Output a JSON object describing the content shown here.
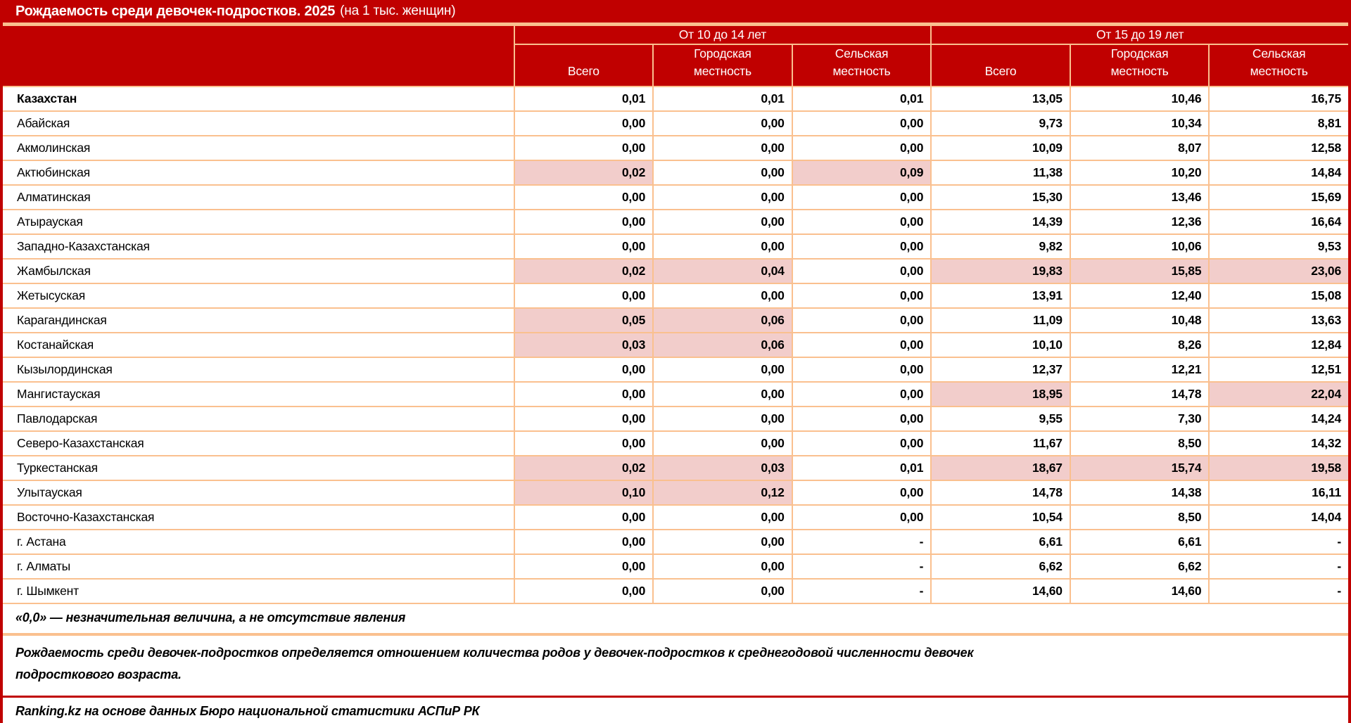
{
  "colors": {
    "header_red": "#C00000",
    "border_peach": "#FAC08F",
    "highlight_pink": "#F2CDCB",
    "header_text": "#FFFFFF",
    "body_text": "#000000"
  },
  "chart_data": {
    "type": "table",
    "title": "Рождаемость среди девочек-подростков. 2025",
    "title_suffix": "(на 1 тыс. женщин)",
    "column_groups": [
      "От 10 до 14 лет",
      "От 15 до 19 лет"
    ],
    "sub_columns": [
      "Всего",
      "Городская местность",
      "Сельская местность"
    ],
    "rows": [
      {
        "region": "Казахстан",
        "bold": true,
        "values": [
          "0,01",
          "0,01",
          "0,01",
          "13,05",
          "10,46",
          "16,75"
        ],
        "highlighted": []
      },
      {
        "region": "Абайская",
        "values": [
          "0,00",
          "0,00",
          "0,00",
          "9,73",
          "10,34",
          "8,81"
        ],
        "highlighted": []
      },
      {
        "region": "Акмолинская",
        "values": [
          "0,00",
          "0,00",
          "0,00",
          "10,09",
          "8,07",
          "12,58"
        ],
        "highlighted": []
      },
      {
        "region": "Актюбинская",
        "values": [
          "0,02",
          "0,00",
          "0,09",
          "11,38",
          "10,20",
          "14,84"
        ],
        "highlighted": [
          0,
          2
        ]
      },
      {
        "region": "Алматинская",
        "values": [
          "0,00",
          "0,00",
          "0,00",
          "15,30",
          "13,46",
          "15,69"
        ],
        "highlighted": []
      },
      {
        "region": "Атырауская",
        "values": [
          "0,00",
          "0,00",
          "0,00",
          "14,39",
          "12,36",
          "16,64"
        ],
        "highlighted": []
      },
      {
        "region": "Западно-Казахстанская",
        "values": [
          "0,00",
          "0,00",
          "0,00",
          "9,82",
          "10,06",
          "9,53"
        ],
        "highlighted": []
      },
      {
        "region": "Жамбылская",
        "values": [
          "0,02",
          "0,04",
          "0,00",
          "19,83",
          "15,85",
          "23,06"
        ],
        "highlighted": [
          0,
          1,
          3,
          4,
          5
        ]
      },
      {
        "region": "Жетысуская",
        "values": [
          "0,00",
          "0,00",
          "0,00",
          "13,91",
          "12,40",
          "15,08"
        ],
        "highlighted": []
      },
      {
        "region": "Карагандинская",
        "values": [
          "0,05",
          "0,06",
          "0,00",
          "11,09",
          "10,48",
          "13,63"
        ],
        "highlighted": [
          0,
          1
        ]
      },
      {
        "region": "Костанайская",
        "values": [
          "0,03",
          "0,06",
          "0,00",
          "10,10",
          "8,26",
          "12,84"
        ],
        "highlighted": [
          0,
          1
        ]
      },
      {
        "region": "Кызылординская",
        "values": [
          "0,00",
          "0,00",
          "0,00",
          "12,37",
          "12,21",
          "12,51"
        ],
        "highlighted": []
      },
      {
        "region": "Мангистауская",
        "values": [
          "0,00",
          "0,00",
          "0,00",
          "18,95",
          "14,78",
          "22,04"
        ],
        "highlighted": [
          3,
          5
        ]
      },
      {
        "region": "Павлодарская",
        "values": [
          "0,00",
          "0,00",
          "0,00",
          "9,55",
          "7,30",
          "14,24"
        ],
        "highlighted": []
      },
      {
        "region": "Северо-Казахстанская",
        "values": [
          "0,00",
          "0,00",
          "0,00",
          "11,67",
          "8,50",
          "14,32"
        ],
        "highlighted": []
      },
      {
        "region": "Туркестанская",
        "values": [
          "0,02",
          "0,03",
          "0,01",
          "18,67",
          "15,74",
          "19,58"
        ],
        "highlighted": [
          0,
          1,
          3,
          4,
          5
        ]
      },
      {
        "region": "Улытауская",
        "values": [
          "0,10",
          "0,12",
          "0,00",
          "14,78",
          "14,38",
          "16,11"
        ],
        "highlighted": [
          0,
          1
        ]
      },
      {
        "region": "Восточно-Казахстанская",
        "values": [
          "0,00",
          "0,00",
          "0,00",
          "10,54",
          "8,50",
          "14,04"
        ],
        "highlighted": []
      },
      {
        "region": "г. Астана",
        "values": [
          "0,00",
          "0,00",
          "-",
          "6,61",
          "6,61",
          "-"
        ],
        "highlighted": []
      },
      {
        "region": "г. Алматы",
        "values": [
          "0,00",
          "0,00",
          "-",
          "6,62",
          "6,62",
          "-"
        ],
        "highlighted": []
      },
      {
        "region": "г. Шымкент",
        "values": [
          "0,00",
          "0,00",
          "-",
          "14,60",
          "14,60",
          "-"
        ],
        "highlighted": []
      }
    ],
    "footnotes": [
      "«0,0» — незначительная величина, а не отсутствие явления",
      "Рождаемость среди девочек-подростков определяется отношением количества родов у девочек-подростков к среднегодовой численности девочек подросткового возраста.",
      "Ranking.kz на основе данных Бюро национальной статистики АСПиР РК"
    ]
  }
}
